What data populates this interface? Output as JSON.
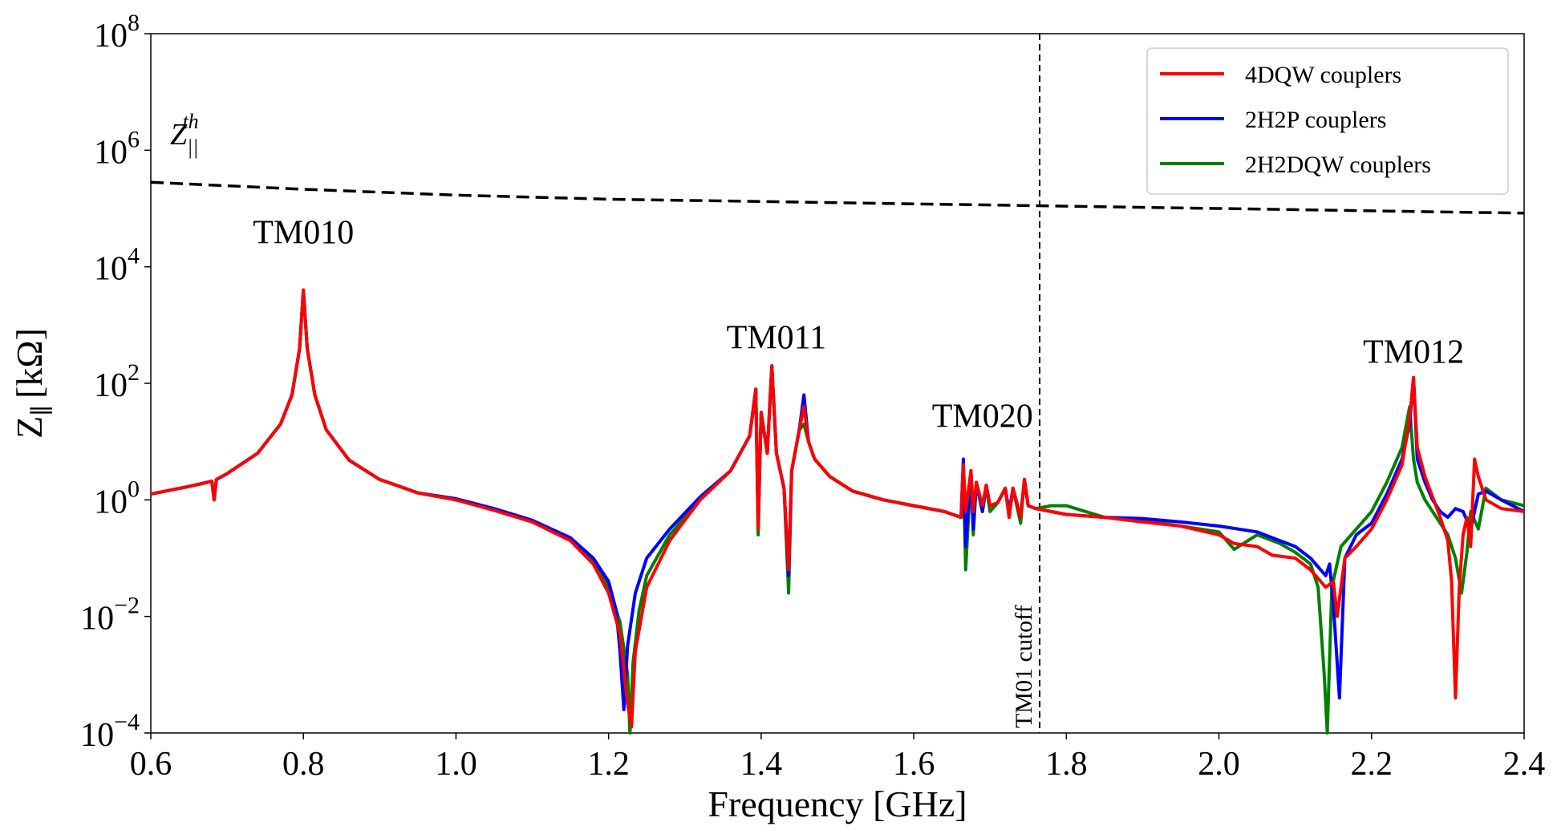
{
  "chart_data": {
    "type": "line",
    "xlabel": "Frequency [GHz]",
    "ylabel": "Z",
    "ylabel_sub": "∥",
    "ylabel_unit": "[kΩ]",
    "xlim": [
      0.6,
      2.4
    ],
    "ylim_log10": [
      -4,
      8
    ],
    "y_scale": "log",
    "x_ticks": [
      0.6,
      0.8,
      1.0,
      1.2,
      1.4,
      1.6,
      1.8,
      2.0,
      2.2,
      2.4
    ],
    "x_tick_labels": [
      "0.6",
      "0.8",
      "1.0",
      "1.2",
      "1.4",
      "1.6",
      "1.8",
      "2.0",
      "2.2",
      "2.4"
    ],
    "y_ticks_exp": [
      -4,
      -2,
      0,
      2,
      4,
      6,
      8
    ],
    "y_tick_labels": [
      "10^-4",
      "10^-2",
      "10^0",
      "10^2",
      "10^4",
      "10^6",
      "10^8"
    ],
    "legend_position": "top-right",
    "threshold": {
      "label": "Z",
      "label_sub": "||",
      "label_sup": "th",
      "x": [
        0.6,
        0.8,
        1.0,
        1.2,
        1.4,
        1.6,
        1.8,
        2.0,
        2.2,
        2.4
      ],
      "log10_values": [
        5.45,
        5.33,
        5.23,
        5.16,
        5.12,
        5.08,
        5.04,
        5.0,
        4.96,
        4.92
      ]
    },
    "cutoff": {
      "x": 1.765,
      "label": "TM01 cutoff"
    },
    "annotations": [
      {
        "text": "TM010",
        "x": 0.8,
        "log10_y": 4.4
      },
      {
        "text": "TM011",
        "x": 1.42,
        "log10_y": 2.6
      },
      {
        "text": "TM020",
        "x": 1.69,
        "log10_y": 1.25
      },
      {
        "text": "TM012",
        "x": 2.255,
        "log10_y": 2.35
      }
    ],
    "series": [
      {
        "name": "4DQW couplers",
        "color": "#ff0000",
        "x": [
          0.6,
          0.65,
          0.68,
          0.683,
          0.686,
          0.7,
          0.74,
          0.77,
          0.785,
          0.795,
          0.8,
          0.805,
          0.815,
          0.83,
          0.86,
          0.9,
          0.95,
          1.0,
          1.05,
          1.1,
          1.15,
          1.18,
          1.2,
          1.215,
          1.225,
          1.23,
          1.235,
          1.25,
          1.28,
          1.32,
          1.36,
          1.385,
          1.393,
          1.396,
          1.4,
          1.408,
          1.414,
          1.42,
          1.43,
          1.436,
          1.44,
          1.45,
          1.456,
          1.462,
          1.47,
          1.49,
          1.52,
          1.56,
          1.6,
          1.64,
          1.662,
          1.665,
          1.668,
          1.675,
          1.678,
          1.682,
          1.69,
          1.695,
          1.7,
          1.71,
          1.72,
          1.725,
          1.73,
          1.74,
          1.745,
          1.75,
          1.76,
          1.78,
          1.8,
          1.85,
          1.9,
          1.95,
          2.0,
          2.02,
          2.05,
          2.07,
          2.1,
          2.12,
          2.14,
          2.15,
          2.155,
          2.16,
          2.165,
          2.18,
          2.2,
          2.22,
          2.24,
          2.25,
          2.255,
          2.26,
          2.27,
          2.28,
          2.29,
          2.3,
          2.305,
          2.31,
          2.315,
          2.32,
          2.325,
          2.33,
          2.335,
          2.34,
          2.35,
          2.37,
          2.4
        ],
        "log10_values": [
          0.1,
          0.23,
          0.32,
          0.0,
          0.35,
          0.45,
          0.8,
          1.3,
          1.8,
          2.6,
          3.6,
          2.6,
          1.8,
          1.2,
          0.68,
          0.35,
          0.12,
          0.0,
          -0.18,
          -0.38,
          -0.7,
          -1.1,
          -1.6,
          -2.3,
          -3.5,
          -3.9,
          -2.6,
          -1.5,
          -0.7,
          0.0,
          0.5,
          1.1,
          1.9,
          -0.5,
          1.5,
          0.8,
          2.3,
          0.8,
          0.2,
          -1.2,
          0.5,
          1.2,
          1.6,
          1.0,
          0.7,
          0.4,
          0.15,
          0.0,
          -0.1,
          -0.2,
          -0.3,
          0.6,
          -0.2,
          0.5,
          -0.2,
          0.3,
          -0.1,
          0.25,
          -0.1,
          -0.05,
          0.2,
          -0.3,
          0.2,
          -0.3,
          0.35,
          -0.1,
          -0.15,
          -0.2,
          -0.25,
          -0.3,
          -0.38,
          -0.45,
          -0.6,
          -0.75,
          -0.8,
          -0.95,
          -1.0,
          -1.2,
          -1.5,
          -1.4,
          -2.0,
          -1.5,
          -1.0,
          -0.8,
          -0.5,
          0.0,
          0.6,
          1.4,
          2.1,
          0.9,
          0.4,
          0.05,
          -0.3,
          -0.7,
          -1.4,
          -3.4,
          -1.5,
          -0.6,
          -0.3,
          -0.8,
          0.7,
          0.4,
          0.0,
          -0.15,
          -0.2
        ]
      },
      {
        "name": "2H2P couplers",
        "color": "#0000ff",
        "x": [
          0.6,
          0.65,
          0.68,
          0.683,
          0.686,
          0.7,
          0.74,
          0.77,
          0.785,
          0.795,
          0.8,
          0.805,
          0.815,
          0.83,
          0.86,
          0.9,
          0.95,
          1.0,
          1.05,
          1.1,
          1.15,
          1.18,
          1.2,
          1.21,
          1.215,
          1.22,
          1.225,
          1.235,
          1.25,
          1.28,
          1.32,
          1.36,
          1.385,
          1.393,
          1.396,
          1.4,
          1.408,
          1.414,
          1.42,
          1.43,
          1.436,
          1.44,
          1.45,
          1.456,
          1.462,
          1.47,
          1.49,
          1.52,
          1.56,
          1.6,
          1.64,
          1.662,
          1.665,
          1.668,
          1.675,
          1.678,
          1.682,
          1.69,
          1.695,
          1.7,
          1.71,
          1.72,
          1.725,
          1.73,
          1.74,
          1.745,
          1.75,
          1.76,
          1.78,
          1.8,
          1.85,
          1.9,
          1.95,
          2.0,
          2.05,
          2.08,
          2.1,
          2.12,
          2.14,
          2.145,
          2.15,
          2.158,
          2.165,
          2.18,
          2.2,
          2.22,
          2.24,
          2.25,
          2.255,
          2.26,
          2.27,
          2.28,
          2.29,
          2.3,
          2.31,
          2.32,
          2.33,
          2.34,
          2.35,
          2.37,
          2.4
        ],
        "log10_values": [
          0.1,
          0.23,
          0.32,
          0.0,
          0.35,
          0.45,
          0.8,
          1.3,
          1.8,
          2.6,
          3.6,
          2.6,
          1.8,
          1.2,
          0.68,
          0.35,
          0.12,
          0.02,
          -0.15,
          -0.35,
          -0.65,
          -1.0,
          -1.4,
          -1.9,
          -2.6,
          -3.6,
          -2.5,
          -1.6,
          -1.0,
          -0.5,
          0.05,
          0.5,
          1.1,
          1.9,
          -0.4,
          1.5,
          0.8,
          2.3,
          0.8,
          0.2,
          -1.3,
          0.5,
          1.2,
          1.8,
          1.0,
          0.7,
          0.4,
          0.15,
          0.0,
          -0.1,
          -0.2,
          -0.3,
          0.7,
          -0.8,
          0.5,
          -0.5,
          0.3,
          -0.2,
          0.25,
          -0.1,
          -0.05,
          0.2,
          -0.2,
          0.2,
          -0.3,
          0.35,
          -0.1,
          -0.15,
          -0.2,
          -0.25,
          -0.3,
          -0.32,
          -0.38,
          -0.45,
          -0.55,
          -0.7,
          -0.8,
          -1.0,
          -1.3,
          -1.1,
          -1.8,
          -3.4,
          -1.0,
          -0.6,
          -0.4,
          0.1,
          0.7,
          1.3,
          2.1,
          0.7,
          0.3,
          0.0,
          -0.2,
          -0.3,
          -0.15,
          -0.2,
          -0.5,
          0.1,
          0.15,
          0.0,
          -0.2
        ]
      },
      {
        "name": "2H2DQW couplers",
        "color": "#008000",
        "x": [
          0.6,
          0.65,
          0.68,
          0.683,
          0.686,
          0.7,
          0.74,
          0.77,
          0.785,
          0.795,
          0.8,
          0.805,
          0.815,
          0.83,
          0.86,
          0.9,
          0.95,
          1.0,
          1.05,
          1.1,
          1.15,
          1.18,
          1.2,
          1.215,
          1.225,
          1.228,
          1.232,
          1.24,
          1.25,
          1.28,
          1.32,
          1.36,
          1.385,
          1.393,
          1.396,
          1.4,
          1.408,
          1.414,
          1.42,
          1.43,
          1.436,
          1.44,
          1.45,
          1.456,
          1.462,
          1.47,
          1.49,
          1.52,
          1.56,
          1.6,
          1.64,
          1.662,
          1.665,
          1.668,
          1.675,
          1.678,
          1.682,
          1.69,
          1.695,
          1.7,
          1.71,
          1.72,
          1.725,
          1.73,
          1.74,
          1.745,
          1.75,
          1.76,
          1.78,
          1.8,
          1.85,
          1.9,
          1.95,
          2.0,
          2.02,
          2.05,
          2.08,
          2.1,
          2.12,
          2.13,
          2.138,
          2.142,
          2.148,
          2.16,
          2.18,
          2.2,
          2.22,
          2.24,
          2.25,
          2.255,
          2.26,
          2.27,
          2.28,
          2.29,
          2.3,
          2.31,
          2.318,
          2.325,
          2.33,
          2.34,
          2.35,
          2.37,
          2.4
        ],
        "log10_values": [
          0.1,
          0.23,
          0.32,
          0.0,
          0.35,
          0.45,
          0.8,
          1.3,
          1.8,
          2.6,
          3.6,
          2.6,
          1.8,
          1.2,
          0.68,
          0.35,
          0.12,
          0.0,
          -0.17,
          -0.37,
          -0.68,
          -1.05,
          -1.5,
          -2.1,
          -3.0,
          -4.0,
          -2.8,
          -1.9,
          -1.3,
          -0.6,
          0.0,
          0.5,
          1.1,
          1.9,
          -0.6,
          1.5,
          0.8,
          2.3,
          0.8,
          0.2,
          -1.6,
          0.5,
          1.2,
          1.3,
          1.0,
          0.7,
          0.4,
          0.15,
          0.0,
          -0.1,
          -0.2,
          -0.3,
          0.6,
          -1.2,
          0.5,
          -0.6,
          0.3,
          -0.2,
          0.25,
          -0.2,
          -0.05,
          0.2,
          -0.3,
          0.2,
          -0.4,
          0.35,
          -0.1,
          -0.15,
          -0.1,
          -0.1,
          -0.3,
          -0.35,
          -0.45,
          -0.55,
          -0.85,
          -0.6,
          -0.75,
          -0.9,
          -1.1,
          -1.5,
          -3.0,
          -4.0,
          -1.5,
          -0.8,
          -0.5,
          -0.2,
          0.3,
          0.9,
          1.6,
          0.7,
          0.3,
          0.0,
          -0.2,
          -0.4,
          -0.6,
          -1.0,
          -1.6,
          -0.9,
          -0.2,
          -0.5,
          0.2,
          0.0,
          -0.1
        ]
      }
    ]
  }
}
